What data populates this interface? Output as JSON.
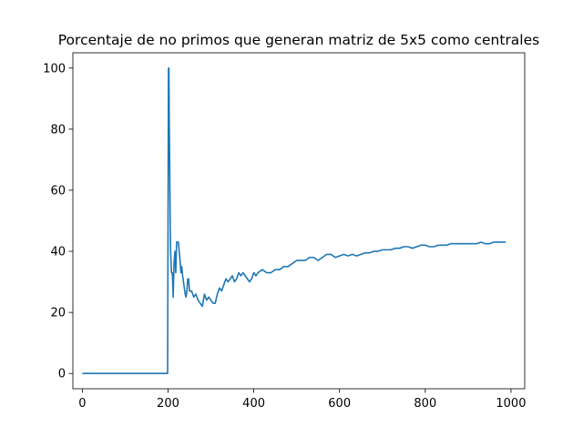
{
  "chart_data": {
    "type": "line",
    "title": "Porcentaje de no primos que generan matriz de 5x5 como centrales",
    "xlabel": "",
    "ylabel": "",
    "xlim": [
      -22,
      1032
    ],
    "ylim": [
      -5,
      105
    ],
    "xticks": [
      0,
      200,
      400,
      600,
      800,
      1000
    ],
    "yticks": [
      0,
      20,
      40,
      60,
      80,
      100
    ],
    "grid": false,
    "legend": "none",
    "line_color": "#1f77b4",
    "series": [
      {
        "x": [
          0,
          100,
          199,
          200,
          201,
          202,
          203,
          204,
          205,
          206,
          208,
          210,
          212,
          214,
          216,
          218,
          220,
          224,
          226,
          228,
          230,
          232,
          234,
          236,
          238,
          240,
          242,
          244,
          246,
          248,
          250,
          255,
          260,
          265,
          270,
          275,
          280,
          285,
          290,
          295,
          300,
          305,
          310,
          315,
          320,
          325,
          330,
          335,
          340,
          345,
          350,
          355,
          360,
          365,
          370,
          375,
          380,
          385,
          390,
          395,
          400,
          405,
          410,
          420,
          430,
          440,
          450,
          460,
          470,
          480,
          490,
          500,
          510,
          520,
          530,
          540,
          550,
          560,
          570,
          580,
          590,
          600,
          610,
          620,
          630,
          640,
          650,
          660,
          670,
          680,
          690,
          700,
          710,
          720,
          730,
          740,
          750,
          760,
          770,
          780,
          790,
          800,
          810,
          820,
          830,
          840,
          850,
          860,
          870,
          880,
          890,
          900,
          910,
          920,
          930,
          940,
          950,
          960,
          970,
          980,
          988
        ],
        "y": [
          0,
          0,
          0,
          50,
          100,
          100,
          80,
          66,
          50,
          40,
          33,
          33,
          25,
          36,
          40,
          33,
          43,
          43,
          40,
          37,
          33,
          35,
          32,
          30,
          28,
          26,
          25,
          27,
          31,
          31,
          27,
          27,
          25,
          26,
          24,
          23,
          22,
          26,
          24,
          25,
          24,
          23,
          23,
          26,
          28,
          27,
          29,
          31,
          30,
          31,
          32,
          30,
          31,
          33,
          32,
          33,
          32,
          31,
          30,
          31,
          33,
          32,
          33,
          34,
          33,
          33,
          34,
          34,
          35,
          35,
          36,
          37,
          37,
          37,
          38,
          38,
          37,
          38,
          39,
          39,
          38,
          38.5,
          39,
          38.5,
          39,
          38.5,
          39,
          39.5,
          39.5,
          40,
          40,
          40.5,
          40.5,
          40.5,
          41,
          41,
          41.5,
          41.5,
          41,
          41.5,
          42,
          42,
          41.5,
          41.5,
          42,
          42,
          42,
          42.5,
          42.5,
          42.5,
          42.5,
          42.5,
          42.5,
          42.5,
          43,
          42.5,
          42.5,
          43,
          43,
          43,
          43
        ]
      }
    ]
  }
}
